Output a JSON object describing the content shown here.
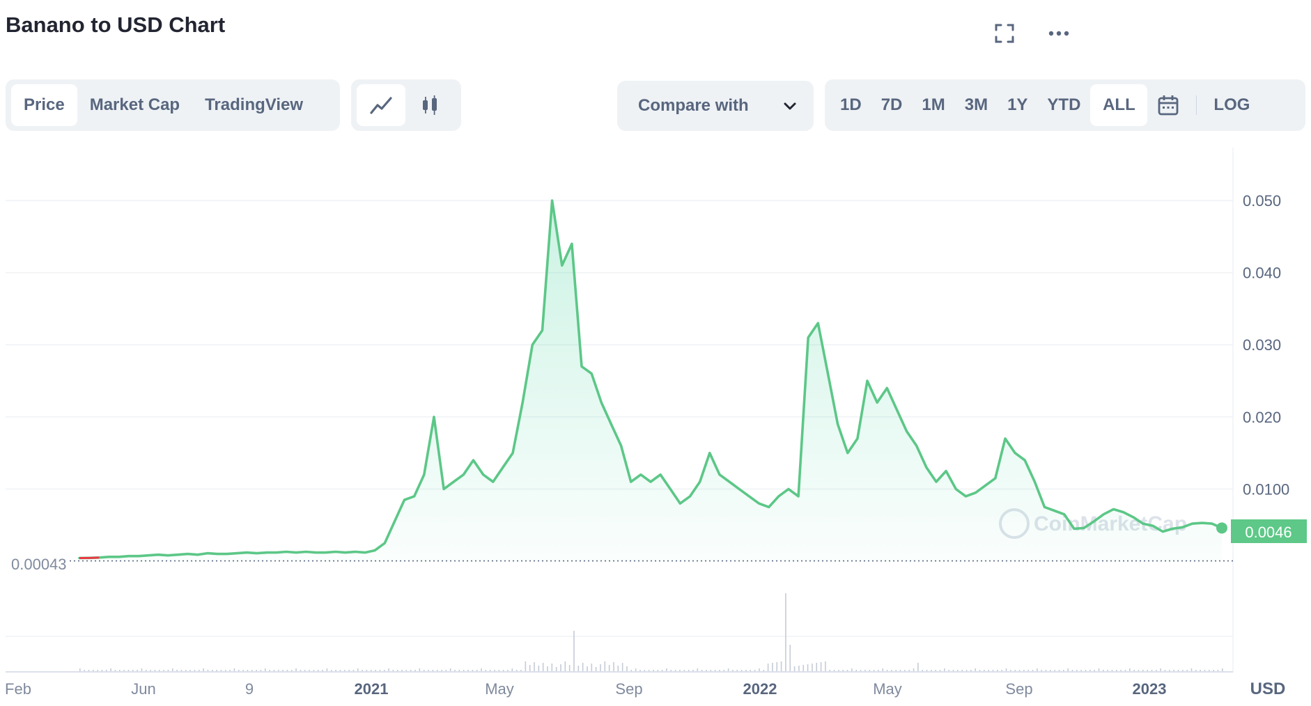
{
  "header": {
    "title": "Banano to USD Chart"
  },
  "toolbar": {
    "tabs": [
      "Price",
      "Market Cap",
      "TradingView"
    ],
    "compare_label": "Compare with",
    "ranges": [
      "1D",
      "7D",
      "1M",
      "3M",
      "1Y",
      "YTD",
      "ALL"
    ],
    "scale_label": "LOG",
    "active_tab": "Price",
    "active_range": "ALL"
  },
  "icons": {
    "fullscreen": "fullscreen-icon",
    "more": "more-dots-icon",
    "line_chart": "line-chart-icon",
    "candlestick": "candlestick-icon",
    "calendar": "calendar-icon",
    "dropdown": "chevron-down-icon"
  },
  "colors": {
    "line": "#16c784",
    "line_drawn": "#5cc787",
    "early_line": "#ea3943",
    "grid": "#eff2f5",
    "badge_bg": "#5dc887",
    "axis_text": "#58667e",
    "accent": "#3861fb"
  },
  "chart_data": {
    "type": "line",
    "title": "Banano to USD Chart",
    "currency_label": "USD",
    "y_ticks": [
      "0.050",
      "0.040",
      "0.030",
      "0.020",
      "0.0100"
    ],
    "ylim": [
      0,
      0.05
    ],
    "x_tick_labels": [
      "Feb",
      "Jun",
      "9",
      "2021",
      "May",
      "Sep",
      "2022",
      "May",
      "Sep",
      "2023"
    ],
    "x_tick_bold": [
      false,
      false,
      false,
      true,
      false,
      false,
      true,
      false,
      false,
      true
    ],
    "start_price_label": "0.00043",
    "current_price_label": "0.0046",
    "grid": true,
    "watermark": "CoinMarketCap",
    "series": [
      {
        "values": [
          0.00043,
          0.00045,
          0.0005,
          0.0006,
          0.0006,
          0.0007,
          0.0007,
          0.0008,
          0.0009,
          0.0008,
          0.0009,
          0.001,
          0.0009,
          0.0011,
          0.001,
          0.001,
          0.0011,
          0.0012,
          0.0011,
          0.0012,
          0.0012,
          0.0013,
          0.0012,
          0.0013,
          0.0012,
          0.0012,
          0.0013,
          0.0012,
          0.0013,
          0.0012,
          0.0015,
          0.0025,
          0.0055,
          0.0085,
          0.009,
          0.012,
          0.02,
          0.01,
          0.011,
          0.012,
          0.014,
          0.012,
          0.011,
          0.013,
          0.015,
          0.022,
          0.03,
          0.032,
          0.05,
          0.041,
          0.044,
          0.027,
          0.026,
          0.022,
          0.019,
          0.016,
          0.011,
          0.012,
          0.011,
          0.012,
          0.01,
          0.008,
          0.009,
          0.011,
          0.015,
          0.012,
          0.011,
          0.01,
          0.009,
          0.008,
          0.0075,
          0.009,
          0.01,
          0.009,
          0.031,
          0.033,
          0.026,
          0.019,
          0.015,
          0.017,
          0.025,
          0.022,
          0.024,
          0.021,
          0.018,
          0.016,
          0.013,
          0.011,
          0.0125,
          0.01,
          0.009,
          0.0095,
          0.0105,
          0.0115,
          0.017,
          0.015,
          0.014,
          0.011,
          0.0075,
          0.007,
          0.0065,
          0.0045,
          0.0046,
          0.0055,
          0.0065,
          0.0072,
          0.0068,
          0.0061,
          0.0052,
          0.0049,
          0.0041,
          0.0045,
          0.0047,
          0.0052,
          0.0053,
          0.0052,
          0.0046
        ]
      }
    ],
    "volume_peaks": "spikes near May 2021 and late 2021"
  }
}
